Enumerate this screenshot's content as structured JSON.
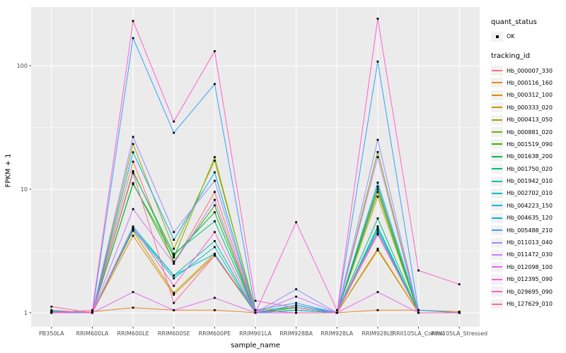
{
  "figure": {
    "background": "#FFFFFF",
    "panel_background": "#EBEBEB",
    "grid_color": "#FFFFFF",
    "tick_color": "#333333",
    "tick_label_color": "#4D4D4D",
    "axis_title_color": "#000000",
    "point_color": "#000000",
    "legend_key_background": "#F2F2F2"
  },
  "axes": {
    "x_title": "sample_name",
    "y_title": "FPKM + 1"
  },
  "legend": {
    "quant_status_title": "quant_status",
    "quant_status_items": [
      {
        "label": "OK"
      }
    ],
    "tracking_id_title": "tracking_id"
  },
  "chart_data": {
    "type": "line",
    "title": "",
    "xlabel": "sample_name",
    "ylabel": "FPKM + 1",
    "y_scale": "log10",
    "ylim": [
      0.77,
      297
    ],
    "y_ticks": [
      1,
      10,
      100
    ],
    "y_minor_ticks": [
      3.1623,
      31.623
    ],
    "grid": true,
    "legend_position": "right",
    "point_shape": "filled-square",
    "categories": [
      "PB350LA",
      "RRIM600LA",
      "RRIM600LE",
      "RRIM600SE",
      "RRIM600PE",
      "RRIM901LA",
      "RRIM928BA",
      "RRIM928LA",
      "RRIM928LE",
      "RRII105LA_Control",
      "RRII105LA_Stressed"
    ],
    "series": [
      {
        "name": "Hb_000007_330",
        "color": "#F8766D",
        "quant_status": "OK",
        "values": [
          1.05,
          1.0,
          16.7,
          2.5,
          9.5,
          1.0,
          1.1,
          1.0,
          10.0,
          1.0,
          1.0
        ]
      },
      {
        "name": "Hb_000116_160",
        "color": "#E88526",
        "quant_status": "OK",
        "values": [
          1.0,
          1.02,
          1.1,
          1.05,
          1.05,
          1.0,
          1.0,
          1.0,
          1.05,
          1.05,
          1.02
        ]
      },
      {
        "name": "Hb_000312_100",
        "color": "#D89000",
        "quant_status": "OK",
        "values": [
          1.0,
          1.0,
          4.2,
          1.4,
          2.9,
          1.0,
          1.0,
          1.0,
          3.3,
          1.0,
          1.0
        ]
      },
      {
        "name": "Hb_000333_020",
        "color": "#C09B00",
        "quant_status": "OK",
        "values": [
          1.0,
          1.0,
          4.6,
          1.45,
          3.0,
          1.0,
          1.05,
          1.0,
          3.2,
          1.0,
          1.0
        ]
      },
      {
        "name": "Hb_000413_050",
        "color": "#A3A500",
        "quant_status": "OK",
        "values": [
          1.0,
          1.0,
          23.2,
          3.3,
          17.0,
          1.05,
          1.1,
          1.0,
          8.7,
          1.0,
          1.0
        ]
      },
      {
        "name": "Hb_000881_020",
        "color": "#7CAE00",
        "quant_status": "OK",
        "values": [
          1.0,
          1.0,
          14.0,
          2.8,
          18.2,
          1.0,
          1.1,
          1.0,
          20.0,
          1.0,
          1.0
        ]
      },
      {
        "name": "Hb_001519_090",
        "color": "#39B600",
        "quant_status": "OK",
        "values": [
          1.0,
          1.0,
          11.2,
          2.6,
          7.4,
          1.0,
          1.15,
          1.0,
          9.5,
          1.0,
          1.0
        ]
      },
      {
        "name": "Hb_001638_200",
        "color": "#00BB4E",
        "quant_status": "OK",
        "values": [
          1.0,
          1.0,
          11.0,
          2.9,
          6.5,
          1.0,
          1.1,
          1.0,
          10.5,
          1.0,
          1.0
        ]
      },
      {
        "name": "Hb_001750_020",
        "color": "#00BF7D",
        "quant_status": "OK",
        "values": [
          1.02,
          1.0,
          13.7,
          3.0,
          5.5,
          1.0,
          1.05,
          1.0,
          5.8,
          1.0,
          1.0
        ]
      },
      {
        "name": "Hb_001942_010",
        "color": "#00C1A3",
        "quant_status": "OK",
        "values": [
          1.03,
          1.0,
          4.8,
          2.0,
          3.8,
          1.0,
          1.05,
          1.0,
          5.0,
          1.0,
          1.0
        ]
      },
      {
        "name": "Hb_002702_010",
        "color": "#00BFC4",
        "quant_status": "OK",
        "values": [
          1.03,
          1.0,
          4.7,
          1.9,
          3.4,
          1.0,
          1.0,
          1.0,
          4.8,
          1.0,
          1.0
        ]
      },
      {
        "name": "Hb_004223_150",
        "color": "#00BAE0",
        "quant_status": "OK",
        "values": [
          1.02,
          1.0,
          5.0,
          2.0,
          3.0,
          1.0,
          1.05,
          1.0,
          4.6,
          1.0,
          1.0
        ]
      },
      {
        "name": "Hb_004635_120",
        "color": "#00B0F6",
        "quant_status": "OK",
        "values": [
          1.02,
          1.0,
          19.9,
          3.9,
          13.7,
          1.0,
          1.15,
          1.0,
          11.3,
          1.05,
          1.0
        ]
      },
      {
        "name": "Hb_005488_210",
        "color": "#35A2FF",
        "quant_status": "OK",
        "values": [
          1.0,
          1.0,
          167.0,
          28.6,
          71.0,
          1.05,
          1.2,
          1.0,
          108.0,
          1.05,
          1.0
        ]
      },
      {
        "name": "Hb_011013_040",
        "color": "#9590FF",
        "quant_status": "OK",
        "values": [
          1.0,
          1.0,
          26.5,
          4.5,
          11.7,
          1.0,
          1.55,
          1.0,
          25.1,
          1.0,
          1.0
        ]
      },
      {
        "name": "Hb_011472_030",
        "color": "#C77CFF",
        "quant_status": "OK",
        "values": [
          1.0,
          1.0,
          6.9,
          2.5,
          8.2,
          1.0,
          1.35,
          1.0,
          18.2,
          1.0,
          1.0
        ]
      },
      {
        "name": "Hb_012098_100",
        "color": "#E76BF3",
        "quant_status": "OK",
        "values": [
          1.0,
          1.0,
          1.47,
          1.05,
          1.32,
          1.0,
          1.0,
          1.0,
          1.47,
          1.0,
          1.0
        ]
      },
      {
        "name": "Hb_012395_090",
        "color": "#FA62DB",
        "quant_status": "OK",
        "values": [
          1.0,
          1.0,
          4.9,
          1.65,
          4.5,
          1.0,
          5.4,
          1.05,
          4.4,
          1.0,
          1.0
        ]
      },
      {
        "name": "Hb_029695_090",
        "color": "#FF61C9",
        "quant_status": "OK",
        "values": [
          1.0,
          1.05,
          230.0,
          35.3,
          131.0,
          1.25,
          1.1,
          1.0,
          240.0,
          2.2,
          1.7
        ]
      },
      {
        "name": "Hb_127629_010",
        "color": "#FF67A4",
        "quant_status": "OK",
        "values": [
          1.12,
          1.0,
          13.5,
          1.2,
          2.9,
          1.05,
          1.0,
          1.0,
          4.3,
          1.0,
          1.0
        ]
      }
    ]
  }
}
